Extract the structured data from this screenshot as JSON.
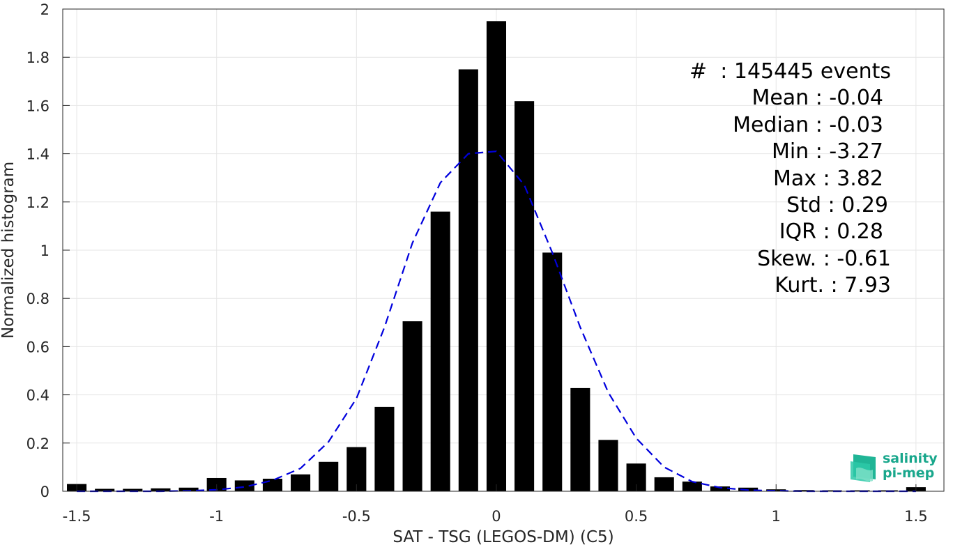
{
  "chart_data": {
    "type": "bar",
    "xlabel": "SAT - TSG (LEGOS-DM) (C5)",
    "ylabel": "Normalized histogram",
    "xlim": [
      -1.55,
      1.6
    ],
    "ylim": [
      0,
      2
    ],
    "grid": true,
    "xticks": [
      "-1.5",
      "-1",
      "-0.5",
      "0",
      "0.5",
      "1",
      "1.5"
    ],
    "yticks": [
      "0",
      "0.2",
      "0.4",
      "0.6",
      "0.8",
      "1",
      "1.2",
      "1.4",
      "1.6",
      "1.8",
      "2"
    ],
    "bin_width": 0.07,
    "bar_color": "#000000",
    "series": [
      {
        "x": [
          -1.5,
          -1.4,
          -1.3,
          -1.2,
          -1.1,
          -1.0,
          -0.9,
          -0.8,
          -0.7,
          -0.6,
          -0.5,
          -0.4,
          -0.3,
          -0.2,
          -0.1,
          0.0,
          0.1,
          0.2,
          0.3,
          0.4,
          0.5,
          0.6,
          0.7,
          0.8,
          0.9,
          1.0,
          1.1,
          1.2,
          1.3,
          1.4,
          1.5
        ],
        "values": [
          0.03,
          0.01,
          0.01,
          0.012,
          0.015,
          0.055,
          0.045,
          0.052,
          0.07,
          0.122,
          0.183,
          0.35,
          0.705,
          1.16,
          1.75,
          1.95,
          1.618,
          0.99,
          0.428,
          0.213,
          0.115,
          0.058,
          0.04,
          0.02,
          0.015,
          0.008,
          0.005,
          0.004,
          0.004,
          0.004,
          0.017
        ]
      }
    ],
    "fit_curve": {
      "style": "dashed",
      "color": "#0000dd",
      "x": [
        -1.5,
        -1.4,
        -1.3,
        -1.2,
        -1.1,
        -1.0,
        -0.9,
        -0.8,
        -0.7,
        -0.6,
        -0.5,
        -0.4,
        -0.3,
        -0.2,
        -0.1,
        0.0,
        0.1,
        0.2,
        0.3,
        0.4,
        0.5,
        0.6,
        0.7,
        0.8,
        0.9,
        1.0,
        1.1,
        1.2,
        1.3,
        1.4,
        1.5
      ],
      "y": [
        0.0,
        0.0,
        0.0,
        0.0,
        0.002,
        0.006,
        0.018,
        0.045,
        0.095,
        0.205,
        0.385,
        0.68,
        1.03,
        1.28,
        1.4,
        1.41,
        1.27,
        0.99,
        0.68,
        0.41,
        0.22,
        0.1,
        0.04,
        0.015,
        0.005,
        0.002,
        0.0,
        0.0,
        0.0,
        0.0,
        0.0
      ]
    }
  },
  "stats": {
    "events": "#  : 145445 events",
    "mean": "Mean : -0.04",
    "median": "Median : -0.03",
    "min": "Min : -3.27",
    "max": "Max : 3.82",
    "std": "Std : 0.29",
    "iqr": "IQR : 0.28",
    "skew": "Skew. : -0.61",
    "kurt": "Kurt. : 7.93"
  },
  "logo": {
    "line1": "salinity",
    "line2": "pi-mep",
    "color": "#19a78c"
  }
}
